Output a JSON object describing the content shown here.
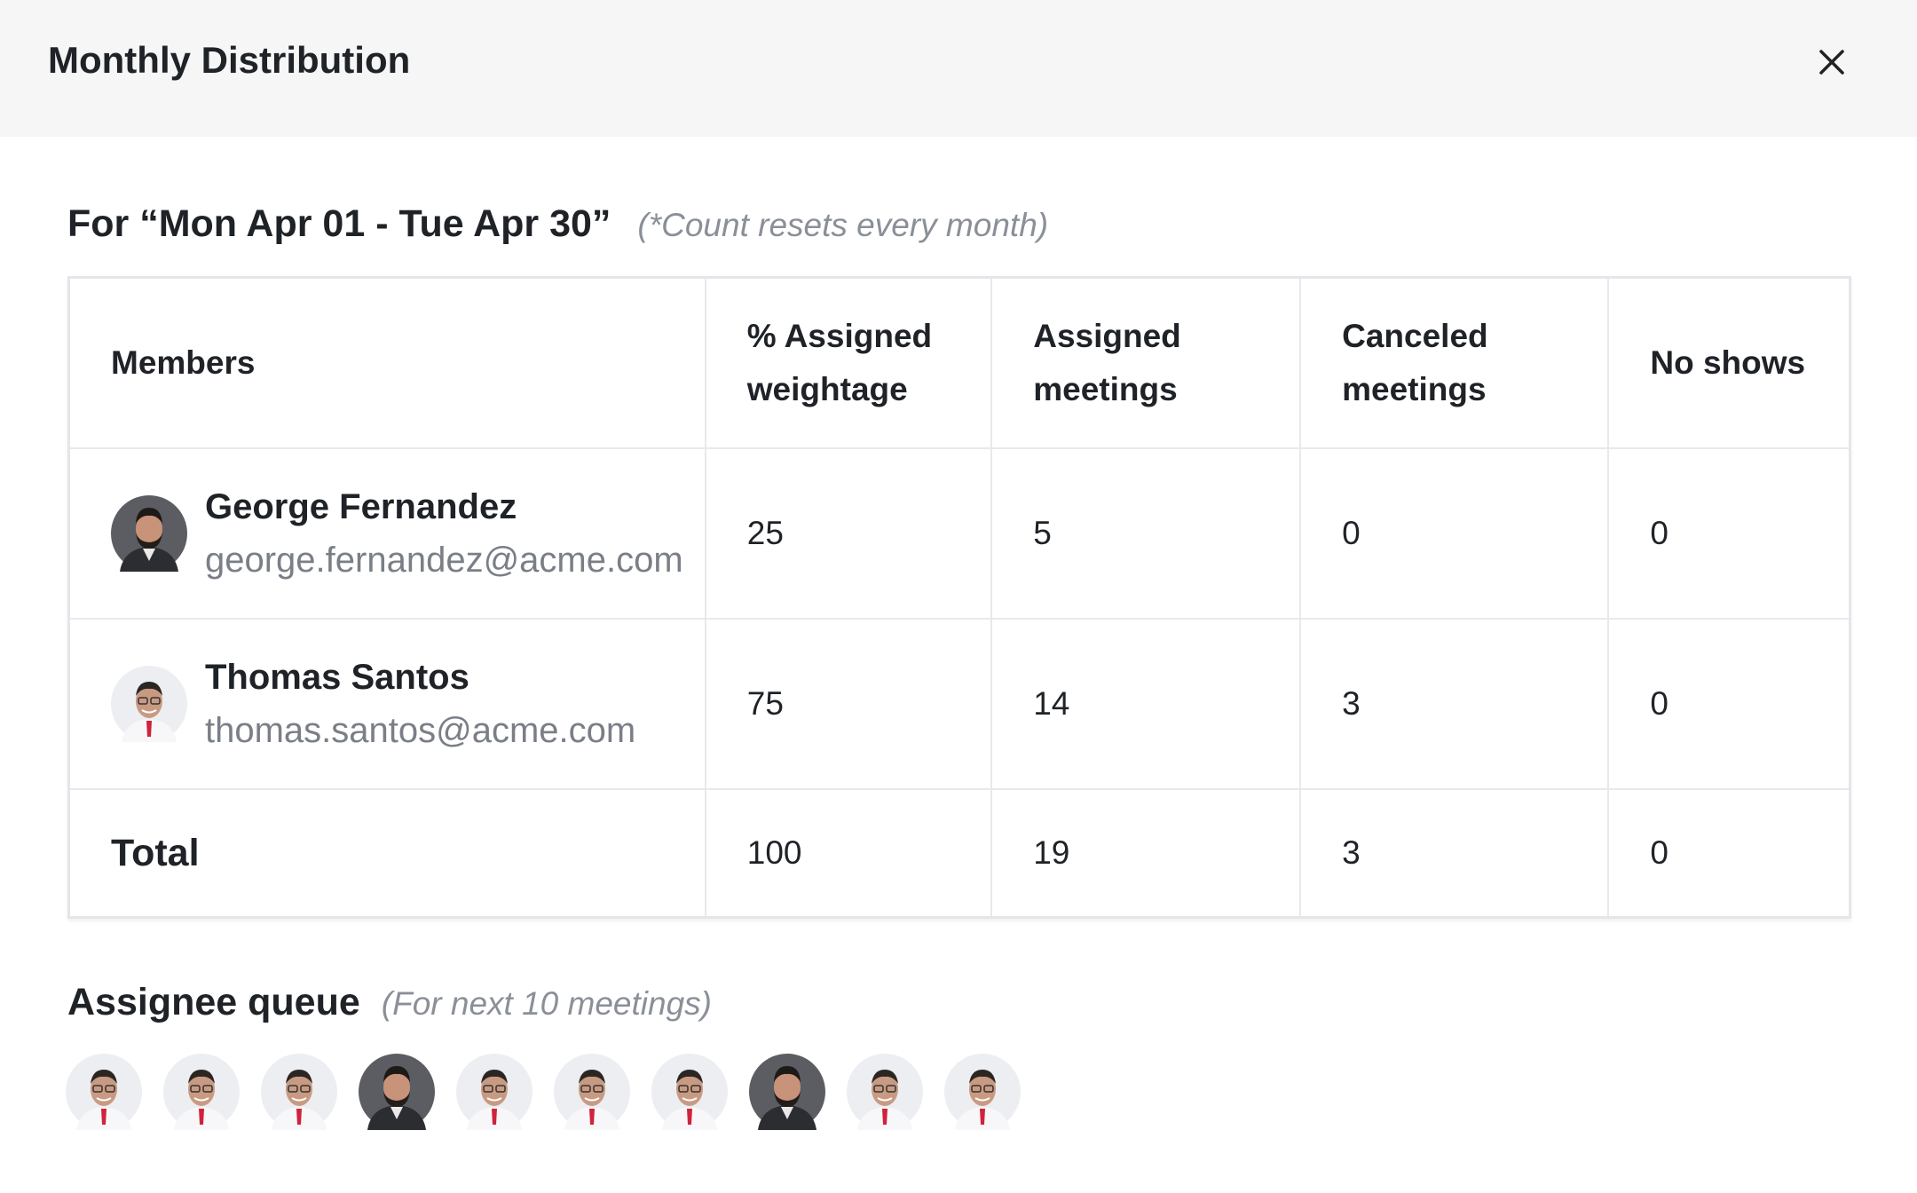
{
  "header": {
    "title": "Monthly Distribution"
  },
  "period": {
    "title": "For “Mon Apr 01 - Tue Apr 30”",
    "note": "(*Count resets every month)"
  },
  "table": {
    "columns": [
      "Members",
      "% Assigned weightage",
      "Assigned meetings",
      "Canceled meetings",
      "No shows"
    ],
    "rows": [
      {
        "name": "George Fernandez",
        "email": "george.fernandez@acme.com",
        "weightage": 25,
        "assigned": 5,
        "canceled": 0,
        "no_shows": 0
      },
      {
        "name": "Thomas Santos",
        "email": "thomas.santos@acme.com",
        "weightage": 75,
        "assigned": 14,
        "canceled": 3,
        "no_shows": 0
      }
    ],
    "total": {
      "label": "Total",
      "weightage": 100,
      "assigned": 19,
      "canceled": 3,
      "no_shows": 0
    }
  },
  "queue": {
    "title": "Assignee queue",
    "note": "(For next 10 meetings)"
  }
}
